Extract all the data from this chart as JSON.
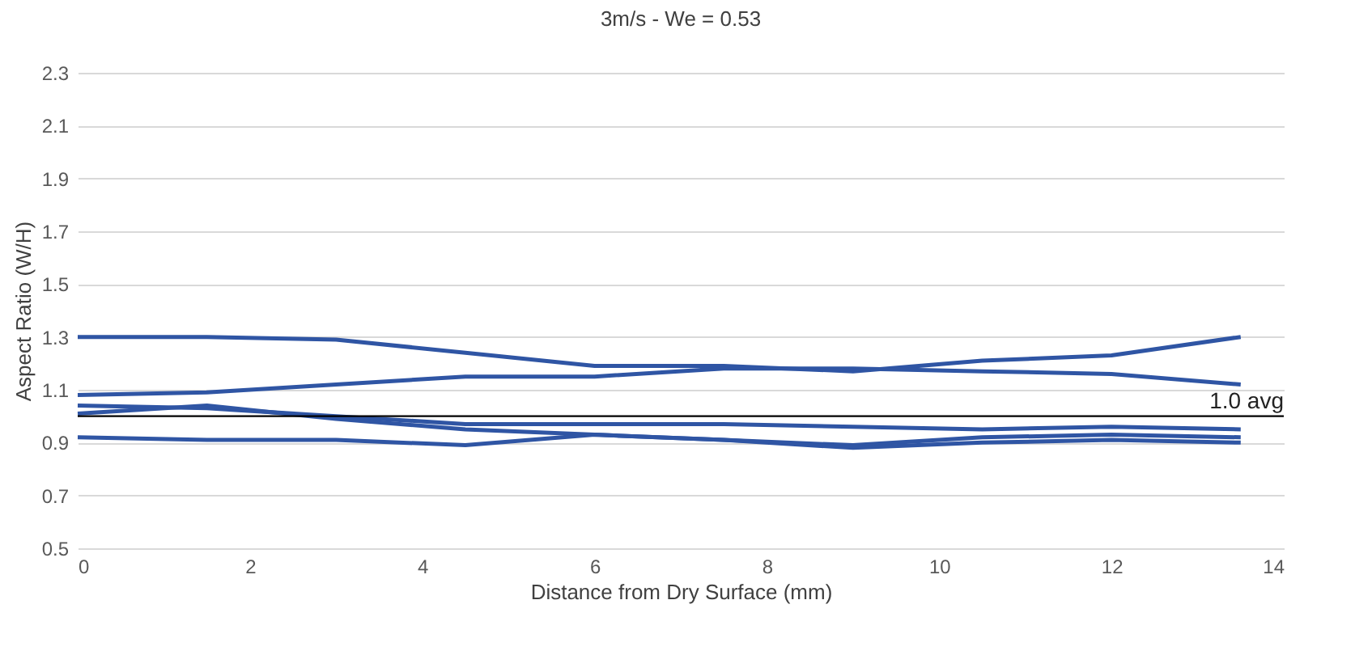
{
  "chart_data": {
    "type": "line",
    "title": "3m/s - We = 0.53",
    "xlabel": "Distance from Dry Surface (mm)",
    "ylabel": "Aspect Ratio (W/H)",
    "x": [
      0,
      1.5,
      3,
      4.5,
      6,
      7.5,
      9,
      10.5,
      12,
      13.5
    ],
    "series": [
      {
        "color": "#2f55a4",
        "values": [
          1.3,
          1.3,
          1.29,
          1.24,
          1.19,
          1.19,
          1.17,
          1.21,
          1.23,
          1.3
        ]
      },
      {
        "color": "#2f55a4",
        "values": [
          1.08,
          1.09,
          1.12,
          1.15,
          1.15,
          1.18,
          1.18,
          1.17,
          1.16,
          1.12
        ]
      },
      {
        "color": "#2f55a4",
        "values": [
          1.04,
          1.03,
          1.0,
          0.97,
          0.97,
          0.97,
          0.96,
          0.95,
          0.96,
          0.95
        ]
      },
      {
        "color": "#2f55a4",
        "values": [
          1.01,
          1.04,
          0.99,
          0.95,
          0.93,
          0.91,
          0.89,
          0.92,
          0.93,
          0.92
        ]
      },
      {
        "color": "#2f55a4",
        "values": [
          0.92,
          0.91,
          0.91,
          0.89,
          0.93,
          0.91,
          0.88,
          0.9,
          0.91,
          0.9
        ]
      }
    ],
    "xlim": [
      0,
      14
    ],
    "xticks": [
      0,
      2,
      4,
      6,
      8,
      10,
      12,
      14
    ],
    "ylim": [
      0.5,
      2.3
    ],
    "yticks": [
      0.5,
      0.7,
      0.9,
      1.1,
      1.3,
      1.5,
      1.7,
      1.9,
      2.1,
      2.3
    ],
    "grid": "y",
    "ref_lines": [
      {
        "axis": "y",
        "value": 1.0,
        "label": "1.0 avg",
        "color": "#000000"
      }
    ]
  }
}
